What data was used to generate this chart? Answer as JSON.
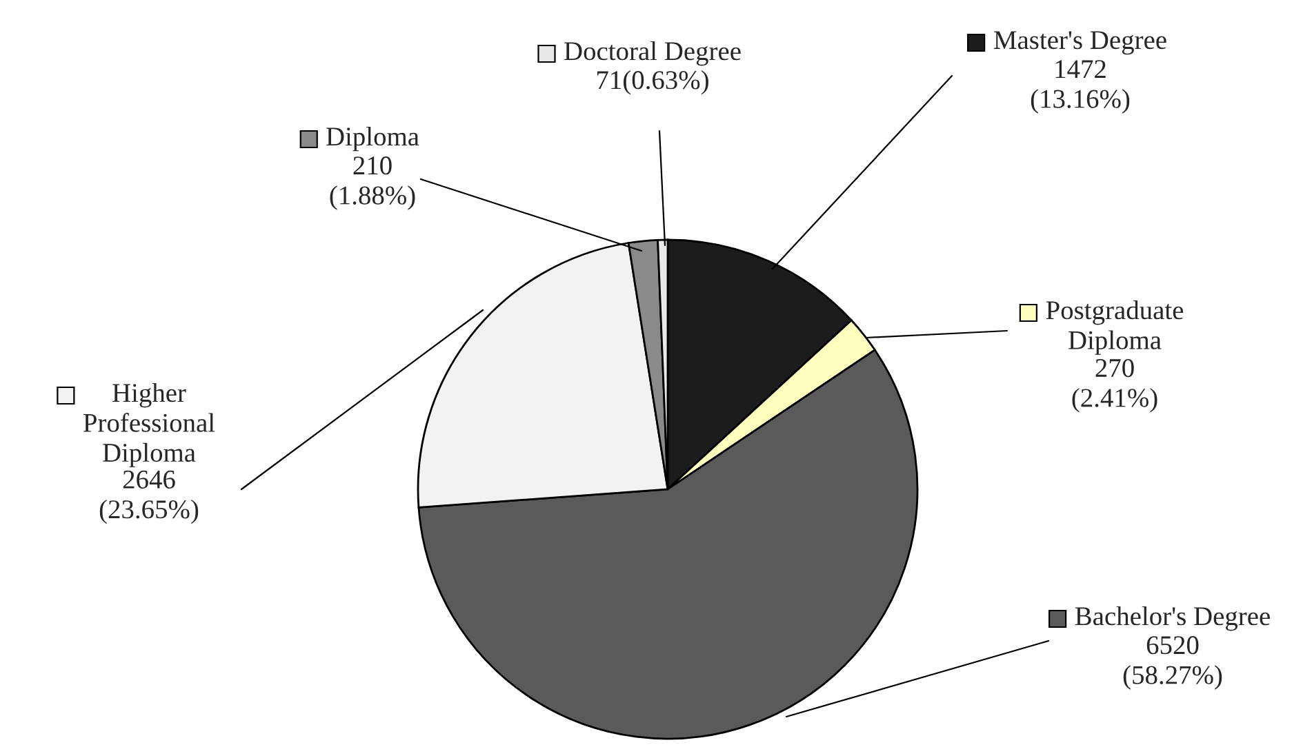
{
  "chart_data": {
    "type": "pie",
    "categories": [
      "Master's Degree",
      "Postgraduate\nDiploma",
      "Bachelor's Degree",
      "Higher\nProfessional\nDiploma",
      "Diploma",
      "Doctoral Degree"
    ],
    "values": [
      1472,
      270,
      6520,
      2646,
      210,
      71
    ],
    "value_labels": [
      "1472\n(13.16%)",
      "270\n(2.41%)",
      "6520\n(58.27%)",
      "2646\n(23.65%)",
      "210\n(1.88%)",
      "71(0.63%)"
    ],
    "legend": "top right",
    "colors": [
      "#1c1c1c",
      "#ffffc0",
      "#5a5a5a",
      "#f2f2f2",
      "#8a8a8a",
      "#e8e8e8"
    ]
  }
}
